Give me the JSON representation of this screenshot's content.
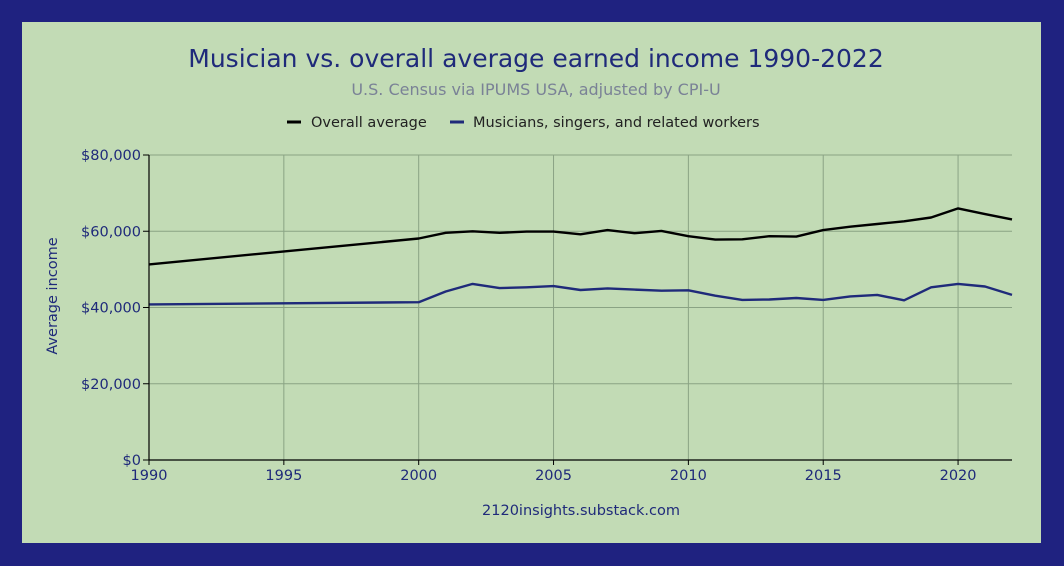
{
  "colors": {
    "background": "#1f2280",
    "panel": "#c2dbb5",
    "title": "#1f2a7a",
    "subtitle": "#7a8296",
    "overall": "#000000",
    "musicians": "#1f2a7a",
    "grid": "#8aa384"
  },
  "chart_data": {
    "type": "line",
    "title": "Musician vs. overall average earned income 1990-2022",
    "subtitle": "U.S. Census via IPUMS USA, adjusted by CPI-U",
    "xlabel": "",
    "ylabel": "Average income",
    "source": "2120insights.substack.com",
    "legend_position": "top-center",
    "grid": true,
    "xlim": [
      1990,
      2022
    ],
    "ylim": [
      0,
      80000
    ],
    "x_ticks": [
      1990,
      1995,
      2000,
      2005,
      2010,
      2015,
      2020
    ],
    "y_ticks": [
      0,
      20000,
      40000,
      60000,
      80000
    ],
    "y_tick_labels": [
      "$0",
      "$20,000",
      "$40,000",
      "$60,000",
      "$80,000"
    ],
    "series": [
      {
        "name": "Overall average",
        "points": [
          [
            1990,
            51300
          ],
          [
            2000,
            58100
          ],
          [
            2001,
            59600
          ],
          [
            2002,
            60000
          ],
          [
            2003,
            59600
          ],
          [
            2004,
            59900
          ],
          [
            2005,
            59900
          ],
          [
            2006,
            59200
          ],
          [
            2007,
            60300
          ],
          [
            2008,
            59500
          ],
          [
            2009,
            60100
          ],
          [
            2010,
            58700
          ],
          [
            2011,
            57800
          ],
          [
            2012,
            57900
          ],
          [
            2013,
            58700
          ],
          [
            2014,
            58600
          ],
          [
            2015,
            60300
          ],
          [
            2016,
            61200
          ],
          [
            2017,
            61900
          ],
          [
            2018,
            62600
          ],
          [
            2019,
            63600
          ],
          [
            2020,
            66000
          ],
          [
            2021,
            64500
          ],
          [
            2022,
            63100
          ]
        ]
      },
      {
        "name": "Musicians, singers, and related workers",
        "points": [
          [
            1990,
            40800
          ],
          [
            2000,
            41400
          ],
          [
            2001,
            44200
          ],
          [
            2002,
            46200
          ],
          [
            2003,
            45100
          ],
          [
            2004,
            45300
          ],
          [
            2005,
            45600
          ],
          [
            2006,
            44600
          ],
          [
            2007,
            45000
          ],
          [
            2008,
            44700
          ],
          [
            2009,
            44400
          ],
          [
            2010,
            44500
          ],
          [
            2011,
            43100
          ],
          [
            2012,
            42000
          ],
          [
            2013,
            42100
          ],
          [
            2014,
            42500
          ],
          [
            2015,
            42000
          ],
          [
            2016,
            42900
          ],
          [
            2017,
            43300
          ],
          [
            2018,
            41900
          ],
          [
            2019,
            45300
          ],
          [
            2020,
            46200
          ],
          [
            2021,
            45500
          ],
          [
            2022,
            43300
          ]
        ]
      }
    ]
  }
}
